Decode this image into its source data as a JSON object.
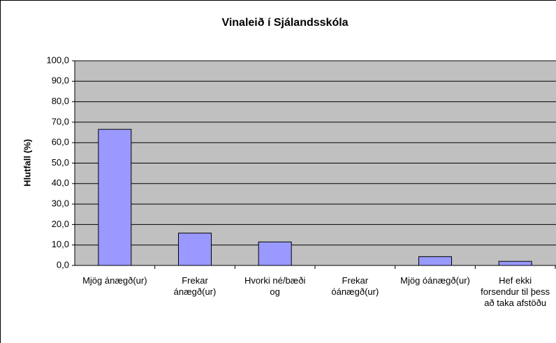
{
  "chart_data": {
    "type": "bar",
    "title": "Vinaleið í Sjálandsskóla",
    "y_label": "Hlutfall (%)",
    "categories": [
      "Mjög ánægð(ur)",
      "Frekar ánægð(ur)",
      "Hvorki né/bæði og",
      "Frekar óánægð(ur)",
      "Mjög óánægð(ur)",
      "Hef ekki forsendur til þess að taka afstöðu"
    ],
    "values": [
      66.5,
      15.8,
      11.5,
      0,
      4.3,
      2.0
    ],
    "color": "#9999ff",
    "ylim": [
      0,
      100
    ],
    "yticks": [
      {
        "value": 0,
        "label": "0,0"
      },
      {
        "value": 10,
        "label": "10,0"
      },
      {
        "value": 20,
        "label": "20,0"
      },
      {
        "value": 30,
        "label": "30,0"
      },
      {
        "value": 40,
        "label": "40,0"
      },
      {
        "value": 50,
        "label": "50,0"
      },
      {
        "value": 60,
        "label": "60,0"
      },
      {
        "value": 70,
        "label": "70,0"
      },
      {
        "value": 80,
        "label": "80,0"
      },
      {
        "value": 90,
        "label": "90,0"
      },
      {
        "value": 100,
        "label": "100,0"
      }
    ],
    "grid": true
  }
}
